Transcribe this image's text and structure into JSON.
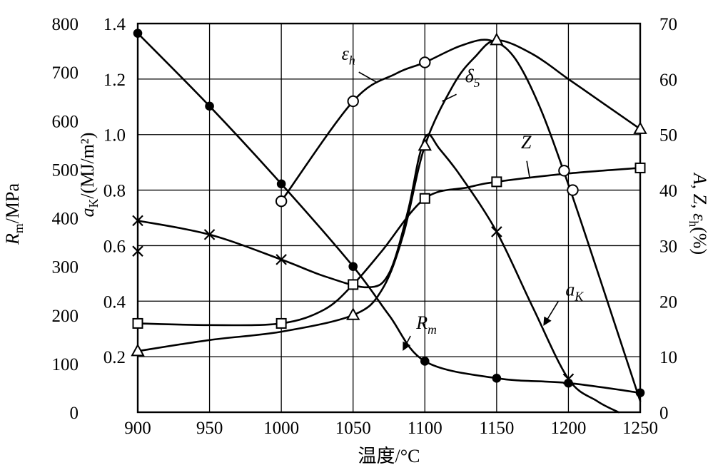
{
  "figure": {
    "background": "#ffffff",
    "line_color": "#000000"
  },
  "axis_titles": {
    "x": "温度/°C",
    "rm": {
      "var": "R",
      "sub": "m",
      "rest": "/MPa"
    },
    "ak": {
      "var": "a",
      "sub": "K",
      "rest": "/(MJ/m²)"
    },
    "right": {
      "pre": "A, Z, ",
      "var": "ε",
      "sub": "h",
      "rest": "(%)"
    }
  },
  "chart_data": {
    "type": "line",
    "title": "",
    "xlabel": "温度/°C",
    "x_min": 900,
    "x_max": 1250,
    "x_ticks": [
      "900",
      "950",
      "1000",
      "1050",
      "1100",
      "1150",
      "1200",
      "1250"
    ],
    "grid": true,
    "legend": "curve labels drawn on plot",
    "axes": {
      "left_outer": {
        "label": "Rm/MPa",
        "min": 0,
        "max": 800,
        "ticks": [
          "800",
          "700",
          "600",
          "500",
          "400",
          "300",
          "200",
          "100",
          "0"
        ]
      },
      "left_inner": {
        "label": "aK/(MJ/m²)",
        "min": 0,
        "max": 1.4,
        "ticks": [
          "1.4",
          "1.2",
          "1.0",
          "0.8",
          "0.6",
          "0.4",
          "0.2"
        ]
      },
      "right": {
        "label": "A, Z, εh(%)",
        "min": 0,
        "max": 70,
        "ticks": [
          "70",
          "60",
          "50",
          "40",
          "30",
          "20",
          "10",
          "0"
        ]
      }
    },
    "series": [
      {
        "name": "Rm",
        "label": {
          "var": "R",
          "sub": "m"
        },
        "unit": "MPa",
        "axis": "left_outer",
        "marker": "filled-circle",
        "x": [
          900,
          950,
          1000,
          1050,
          1100,
          1150,
          1200,
          1250
        ],
        "y": [
          780,
          630,
          470,
          300,
          105,
          70,
          60,
          40
        ],
        "curve": [
          [
            900,
            780
          ],
          [
            950,
            630
          ],
          [
            1000,
            470
          ],
          [
            1050,
            300
          ],
          [
            1075,
            200
          ],
          [
            1100,
            105
          ],
          [
            1150,
            70
          ],
          [
            1200,
            60
          ],
          [
            1250,
            40
          ]
        ]
      },
      {
        "name": "aK",
        "label": {
          "var": "a",
          "sub": "K"
        },
        "unit": "MJ/m²",
        "axis": "left_inner",
        "marker": "x-cross",
        "x": [
          900,
          950,
          1000,
          1050,
          1100,
          1150,
          1200,
          1235
        ],
        "y": [
          0.69,
          0.64,
          0.55,
          0.45,
          1.0,
          0.65,
          0.12,
          0
        ],
        "marker_points": [
          [
            900,
            0.69
          ],
          [
            900,
            0.58
          ],
          [
            950,
            0.64
          ],
          [
            1000,
            0.55
          ],
          [
            1150,
            0.65
          ],
          [
            1200,
            0.12
          ]
        ],
        "curve": [
          [
            900,
            0.69
          ],
          [
            950,
            0.64
          ],
          [
            1000,
            0.55
          ],
          [
            1030,
            0.49
          ],
          [
            1060,
            0.45
          ],
          [
            1075,
            0.5
          ],
          [
            1088,
            0.72
          ],
          [
            1096,
            0.92
          ],
          [
            1102,
            1.0
          ],
          [
            1110,
            0.95
          ],
          [
            1125,
            0.85
          ],
          [
            1150,
            0.65
          ],
          [
            1175,
            0.38
          ],
          [
            1200,
            0.12
          ],
          [
            1220,
            0.04
          ],
          [
            1235,
            0
          ]
        ]
      },
      {
        "name": "δ5",
        "label": {
          "var": "δ",
          "sub": "5"
        },
        "unit": "%",
        "axis": "right",
        "marker": "open-triangle",
        "x": [
          900,
          1050,
          1100,
          1150,
          1250
        ],
        "y": [
          11,
          17.5,
          48,
          67,
          51
        ],
        "curve": [
          [
            900,
            11
          ],
          [
            950,
            13
          ],
          [
            1000,
            14.5
          ],
          [
            1050,
            17.5
          ],
          [
            1070,
            22
          ],
          [
            1085,
            32
          ],
          [
            1100,
            48
          ],
          [
            1120,
            59
          ],
          [
            1135,
            64
          ],
          [
            1150,
            67
          ],
          [
            1175,
            64.5
          ],
          [
            1200,
            60
          ],
          [
            1225,
            55.5
          ],
          [
            1250,
            51
          ]
        ]
      },
      {
        "name": "Z",
        "label": {
          "var": "Z",
          "sub": ""
        },
        "unit": "%",
        "axis": "right",
        "marker": "open-square",
        "x": [
          900,
          1000,
          1050,
          1100,
          1150,
          1250
        ],
        "y": [
          16,
          16,
          23,
          38.5,
          41.5,
          44
        ],
        "curve": [
          [
            900,
            16
          ],
          [
            950,
            15.7
          ],
          [
            1000,
            16
          ],
          [
            1030,
            18.5
          ],
          [
            1050,
            23
          ],
          [
            1070,
            29
          ],
          [
            1100,
            38.5
          ],
          [
            1130,
            40.5
          ],
          [
            1150,
            41.5
          ],
          [
            1200,
            43
          ],
          [
            1250,
            44
          ]
        ]
      },
      {
        "name": "εh",
        "label": {
          "var": "ε",
          "sub": "h"
        },
        "unit": "%",
        "axis": "right",
        "marker": "open-circle",
        "x": [
          1000,
          1050,
          1100,
          1150,
          1200
        ],
        "y": [
          38,
          56,
          63,
          67,
          41
        ],
        "marker_points": [
          [
            1000,
            38
          ],
          [
            1050,
            56
          ],
          [
            1100,
            63
          ],
          [
            1197,
            43.5
          ],
          [
            1203,
            40
          ]
        ],
        "curve": [
          [
            1000,
            38
          ],
          [
            1050,
            56
          ],
          [
            1080,
            61
          ],
          [
            1100,
            63
          ],
          [
            1125,
            66
          ],
          [
            1145,
            67
          ],
          [
            1162,
            64
          ],
          [
            1180,
            55
          ],
          [
            1200,
            41
          ],
          [
            1222,
            24
          ],
          [
            1250,
            2
          ]
        ]
      }
    ],
    "annotations": [
      {
        "label": {
          "var": "ε",
          "sub": "h"
        },
        "x": 1042,
        "y": 1.27,
        "leader": [
          1054,
          1.225,
          1066,
          1.19
        ],
        "arrow": false
      },
      {
        "label": {
          "var": "δ",
          "sub": "5"
        },
        "x": 1128,
        "y": 1.19,
        "leader": [
          1122,
          1.145,
          1112,
          1.12
        ],
        "arrow": false
      },
      {
        "label": {
          "var": "Z",
          "sub": ""
        },
        "x": 1167,
        "y": 0.95,
        "leader": [
          1171,
          0.905,
          1173,
          0.845
        ],
        "arrow": false
      },
      {
        "label": {
          "var": "a",
          "sub": "K"
        },
        "x": 1198,
        "y": 0.42,
        "leader": [
          1193,
          0.4,
          1183,
          0.315
        ],
        "arrow": true
      },
      {
        "label": {
          "var": "R",
          "sub": "m"
        },
        "x": 1094,
        "y": 0.3,
        "leader": [
          1090,
          0.275,
          1085,
          0.225
        ],
        "arrow": true
      }
    ]
  }
}
